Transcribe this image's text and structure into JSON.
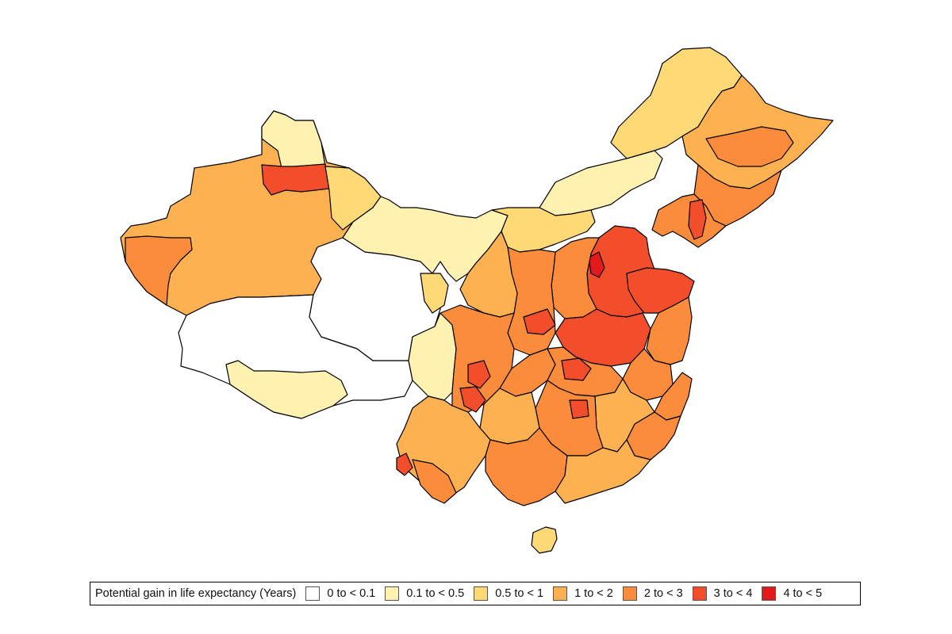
{
  "legend": {
    "title": "Potential gain in life expectancy (Years)",
    "classes": [
      {
        "label": "0 to < 0.1",
        "color": "#ffffff"
      },
      {
        "label": "0.1 to < 0.5",
        "color": "#fff1b0"
      },
      {
        "label": "0.5 to < 1",
        "color": "#fed975"
      },
      {
        "label": "1 to < 2",
        "color": "#fdb150"
      },
      {
        "label": "2 to < 3",
        "color": "#fb8c3c"
      },
      {
        "label": "3 to < 4",
        "color": "#f24e2c"
      },
      {
        "label": "4 to < 5",
        "color": "#e31a1c"
      }
    ]
  },
  "boundary_color": "#000000"
}
